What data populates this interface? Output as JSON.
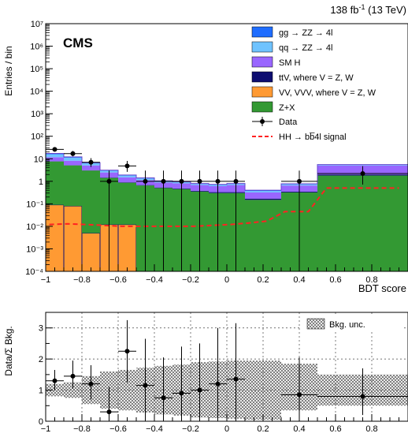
{
  "lumi_label": "138 fb",
  "lumi_sup": "-1",
  "lumi_energy": " (13 TeV)",
  "experiment": "CMS",
  "legend": {
    "ggzz": "gg → ZZ → 4l",
    "qqzz": "qq → ZZ → 4l",
    "smh": "SM H",
    "ttv": "ttV, where V = Z, W",
    "vv": "VV, VVV, where V = Z, W",
    "zx": "Z+X",
    "data": "Data",
    "signal": "HH → bb̅4l signal",
    "unc": "Bkg. unc."
  },
  "colors": {
    "ggzz": "#1f6dff",
    "qqzz": "#6fc3ff",
    "smh": "#9966ff",
    "ttv": "#0d0d70",
    "vv": "#ff9a33",
    "zx": "#339933",
    "signal": "#ff2222"
  },
  "chart_data": [
    {
      "type": "bar",
      "panel": "main",
      "xlabel": "BDT score",
      "ylabel": "Entries / bin",
      "yscale": "log",
      "xlim": [
        -1,
        1
      ],
      "ylim": [
        0.0001,
        10000000
      ],
      "x_ticks": [
        "−1",
        "−0.8",
        "−0.6",
        "−0.4",
        "−0.2",
        "0",
        "0.2",
        "0.4",
        "0.6",
        "0.8"
      ],
      "y_ticks": [
        "10⁻⁴",
        "10⁻³",
        "10⁻²",
        "10⁻¹",
        "1",
        "10",
        "10²",
        "10³",
        "10⁴",
        "10⁵",
        "10⁶",
        "10⁷"
      ],
      "bin_edges": [
        -1,
        -0.9,
        -0.8,
        -0.7,
        -0.6,
        -0.5,
        -0.4,
        -0.3,
        -0.2,
        -0.1,
        0,
        0.1,
        0.3,
        0.5,
        1.0
      ],
      "stack": [
        {
          "key": "vv",
          "values": [
            0.09,
            0.08,
            0.005,
            0.012,
            0.012,
            0,
            0,
            0,
            0,
            0,
            0,
            0,
            0,
            0
          ]
        },
        {
          "key": "zx",
          "values": [
            7.5,
            5.0,
            3.0,
            1.4,
            0.85,
            0.65,
            0.5,
            0.45,
            0.35,
            0.3,
            0.3,
            0.15,
            0.32,
            1.8
          ]
        },
        {
          "key": "ttv",
          "values": [
            0.15,
            0.1,
            0.06,
            0.05,
            0.04,
            0.03,
            0.03,
            0.03,
            0.03,
            0.03,
            0.03,
            0.02,
            0.03,
            0.2
          ]
        },
        {
          "key": "smh",
          "values": [
            4.0,
            3.0,
            2.0,
            1.0,
            0.6,
            0.45,
            0.35,
            0.33,
            0.3,
            0.28,
            0.35,
            0.15,
            0.3,
            3.0
          ]
        },
        {
          "key": "qqzz",
          "values": [
            4.0,
            3.0,
            1.2,
            0.5,
            0.3,
            0.2,
            0.12,
            0.1,
            0.08,
            0.08,
            0.08,
            0.05,
            0.08,
            0.3
          ]
        },
        {
          "key": "ggzz",
          "values": [
            1.5,
            1.0,
            0.4,
            0.15,
            0.1,
            0.08,
            0.05,
            0.04,
            0.04,
            0.04,
            0.04,
            0.03,
            0.04,
            0.2
          ]
        }
      ],
      "data": {
        "x": [
          -0.95,
          -0.85,
          -0.75,
          -0.65,
          -0.55,
          -0.45,
          -0.35,
          -0.25,
          -0.15,
          -0.05,
          0.05,
          0.4,
          0.75
        ],
        "y": [
          26,
          17,
          7,
          1,
          4.8,
          1,
          1,
          1,
          1,
          1,
          1,
          1,
          2.2
        ],
        "xerr": [
          0.05,
          0.05,
          0.05,
          0.05,
          0.05,
          0.05,
          0.05,
          0.05,
          0.05,
          0.05,
          0.05,
          0.1,
          0.25
        ]
      },
      "signal": {
        "x": [
          -0.98,
          -0.88,
          -0.78,
          -0.68,
          -0.58,
          -0.48,
          -0.38,
          -0.28,
          -0.18,
          -0.08,
          0.02,
          0.12,
          0.22,
          0.32,
          0.45,
          0.55,
          0.65,
          0.75,
          0.85,
          0.95
        ],
        "y": [
          0.012,
          0.013,
          0.012,
          0.011,
          0.01,
          0.01,
          0.01,
          0.01,
          0.01,
          0.011,
          0.012,
          0.014,
          0.017,
          0.045,
          0.045,
          0.5,
          0.5,
          0.5,
          0.5,
          0.5
        ]
      }
    },
    {
      "type": "scatter",
      "panel": "ratio",
      "ylabel": "Data/Σ Bkg.",
      "xlim": [
        -1,
        1
      ],
      "ylim": [
        0,
        3.5
      ],
      "x_ticks": [
        "−1",
        "−0.8",
        "−0.6",
        "−0.4",
        "−0.2",
        "0",
        "0.2",
        "0.4",
        "0.6",
        "0.8"
      ],
      "y_ticks": [
        "0",
        "1",
        "2",
        "3"
      ],
      "points": {
        "x": [
          -0.95,
          -0.85,
          -0.75,
          -0.65,
          -0.55,
          -0.45,
          -0.35,
          -0.25,
          -0.15,
          -0.05,
          0.05,
          0.4,
          0.75
        ],
        "y": [
          1.3,
          1.45,
          1.2,
          0.3,
          2.25,
          1.15,
          0.75,
          0.9,
          1.0,
          1.2,
          1.35,
          0.85,
          0.8
        ],
        "yerr_low": [
          0.3,
          0.4,
          0.5,
          0.3,
          1.0,
          1.1,
          0.75,
          0.9,
          1.0,
          1.2,
          1.35,
          0.85,
          0.6
        ],
        "yerr_high": [
          0.35,
          0.5,
          0.6,
          0.8,
          1.0,
          1.5,
          1.3,
          1.5,
          1.5,
          1.8,
          1.8,
          1.2,
          0.9
        ],
        "xerr": [
          0.05,
          0.05,
          0.05,
          0.05,
          0.05,
          0.05,
          0.05,
          0.05,
          0.05,
          0.05,
          0.05,
          0.1,
          0.25
        ]
      },
      "uncertainty_band": {
        "bin_edges": [
          -1,
          -0.9,
          -0.8,
          -0.7,
          -0.6,
          -0.5,
          -0.4,
          -0.3,
          -0.2,
          -0.1,
          0,
          0.1,
          0.3,
          0.5,
          1.0
        ],
        "low": [
          0.8,
          0.75,
          0.55,
          0.4,
          0.35,
          0.28,
          0.22,
          0.18,
          0.12,
          0.1,
          0.08,
          0.05,
          0.35,
          0.5
        ],
        "high": [
          1.2,
          1.25,
          1.45,
          1.6,
          1.65,
          1.72,
          1.78,
          1.82,
          1.9,
          1.92,
          1.95,
          1.95,
          1.85,
          1.5
        ]
      }
    }
  ]
}
